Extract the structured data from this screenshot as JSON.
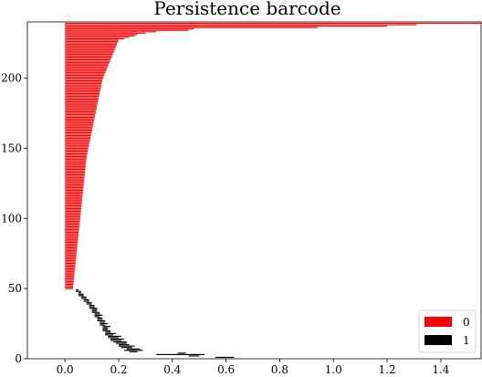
{
  "chart_data": {
    "type": "barcode",
    "title": "Persistence barcode",
    "xlabel": "",
    "ylabel": "",
    "xlim": [
      -0.14,
      1.55
    ],
    "ylim": [
      0,
      240
    ],
    "x_ticks": [
      "0.0",
      "0.2",
      "0.4",
      "0.6",
      "0.8",
      "1.0",
      "1.2",
      "1.4"
    ],
    "y_ticks": [
      "0",
      "50",
      "100",
      "150",
      "200"
    ],
    "grid": false,
    "legend_position": "bottom-right",
    "series": [
      {
        "name": "0",
        "color": "#ff0000",
        "count": 190,
        "first_index": 50,
        "birth": 0.0,
        "top_deaths": [
          1.55,
          1.31,
          1.2,
          0.94,
          0.48,
          0.46,
          0.34,
          0.3,
          0.27,
          0.26,
          0.24,
          0.22
        ],
        "tail_deaths": [
          0.03,
          0.035,
          0.04,
          0.045,
          0.05,
          0.055,
          0.06,
          0.065,
          0.07,
          0.075,
          0.08,
          0.09,
          0.1,
          0.11,
          0.12,
          0.13,
          0.14,
          0.16,
          0.18,
          0.2
        ]
      },
      {
        "name": "1",
        "color": "#000000",
        "count": 49,
        "first_index": 1,
        "intervals": [
          [
            0.56,
            0.63
          ],
          [
            0.46,
            0.5
          ],
          [
            0.34,
            0.52
          ],
          [
            0.42,
            0.45
          ],
          [
            0.24,
            0.27
          ],
          [
            0.22,
            0.29
          ],
          [
            0.23,
            0.28
          ],
          [
            0.21,
            0.25
          ],
          [
            0.2,
            0.26
          ],
          [
            0.2,
            0.24
          ],
          [
            0.19,
            0.23
          ],
          [
            0.18,
            0.23
          ],
          [
            0.17,
            0.21
          ],
          [
            0.17,
            0.22
          ],
          [
            0.16,
            0.2
          ],
          [
            0.16,
            0.21
          ],
          [
            0.15,
            0.18
          ],
          [
            0.15,
            0.19
          ],
          [
            0.15,
            0.17
          ],
          [
            0.14,
            0.17
          ],
          [
            0.14,
            0.16
          ],
          [
            0.14,
            0.16
          ],
          [
            0.14,
            0.17
          ],
          [
            0.13,
            0.15
          ],
          [
            0.13,
            0.16
          ],
          [
            0.13,
            0.15
          ],
          [
            0.12,
            0.15
          ],
          [
            0.12,
            0.14
          ],
          [
            0.12,
            0.14
          ],
          [
            0.11,
            0.13
          ],
          [
            0.11,
            0.14
          ],
          [
            0.11,
            0.13
          ],
          [
            0.1,
            0.13
          ],
          [
            0.1,
            0.12
          ],
          [
            0.1,
            0.12
          ],
          [
            0.09,
            0.12
          ],
          [
            0.09,
            0.11
          ],
          [
            0.09,
            0.11
          ],
          [
            0.08,
            0.1
          ],
          [
            0.08,
            0.1
          ],
          [
            0.07,
            0.09
          ],
          [
            0.07,
            0.09
          ],
          [
            0.06,
            0.08
          ],
          [
            0.06,
            0.08
          ],
          [
            0.05,
            0.07
          ],
          [
            0.05,
            0.07
          ],
          [
            0.05,
            0.06
          ],
          [
            0.04,
            0.06
          ],
          [
            0.04,
            0.05
          ]
        ]
      }
    ],
    "legend": [
      {
        "label": "0",
        "color": "#ff0000"
      },
      {
        "label": "1",
        "color": "#000000"
      }
    ]
  }
}
